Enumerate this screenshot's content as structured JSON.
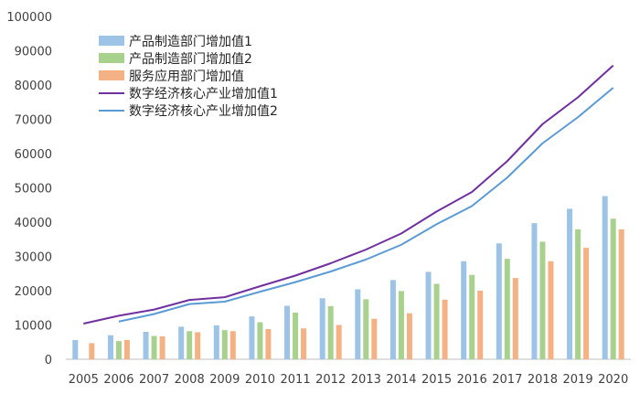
{
  "chart_data": {
    "type": "bar",
    "categories": [
      "2005",
      "2006",
      "2007",
      "2008",
      "2009",
      "2010",
      "2011",
      "2012",
      "2013",
      "2014",
      "2015",
      "2016",
      "2017",
      "2018",
      "2019",
      "2020"
    ],
    "ylim": [
      0,
      100000
    ],
    "yticks": [
      0,
      10000,
      20000,
      30000,
      40000,
      50000,
      60000,
      70000,
      80000,
      90000,
      100000
    ],
    "ytick_labels": [
      "0",
      "10000",
      "20000",
      "30000",
      "40000",
      "50000",
      "60000",
      "70000",
      "80000",
      "90000",
      "100000"
    ],
    "grid": false,
    "legend_position": "top-left",
    "bar_series": [
      {
        "name": "产品制造部门增加值1",
        "color": "#9dc3e6",
        "values": [
          5600,
          7000,
          8000,
          9500,
          9900,
          12500,
          15600,
          17800,
          20400,
          23100,
          25500,
          28600,
          33800,
          39700,
          43900,
          47600
        ]
      },
      {
        "name": "产品制造部门增加值2",
        "color": "#a9d18e",
        "values": [
          null,
          5300,
          6800,
          8200,
          8500,
          10800,
          13600,
          15500,
          17500,
          19900,
          22000,
          24600,
          29300,
          34300,
          37900,
          41000
        ]
      },
      {
        "name": "服务应用部门增加值",
        "color": "#f4b183",
        "values": [
          4700,
          5600,
          6700,
          7900,
          8200,
          8800,
          9000,
          10000,
          11800,
          13400,
          17400,
          20000,
          23700,
          28600,
          32500,
          37900
        ]
      }
    ],
    "line_series": [
      {
        "name": "数字经济核心产业增加值1",
        "color": "#7030a0",
        "values": [
          10400,
          12700,
          14500,
          17300,
          18100,
          21300,
          24400,
          28000,
          32000,
          36700,
          43100,
          48800,
          57800,
          68600,
          76400,
          85700
        ]
      },
      {
        "name": "数字经济核心产业增加值2",
        "color": "#5b9bd5",
        "values": [
          null,
          11000,
          13200,
          16100,
          16800,
          19700,
          22500,
          25600,
          29100,
          33400,
          39400,
          44700,
          53000,
          63000,
          70600,
          79200
        ]
      }
    ]
  }
}
